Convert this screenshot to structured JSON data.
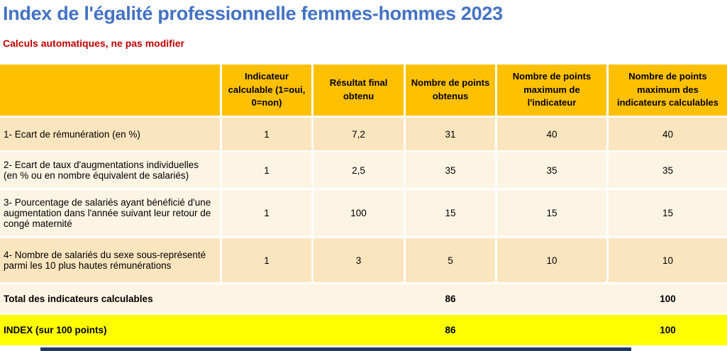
{
  "page": {
    "title": "Index de l'égalité professionnelle femmes-hommes 2023",
    "subtitle": "Calculs automatiques, ne pas modifier"
  },
  "colors": {
    "title_blue": "#4472C4",
    "subtitle_red": "#C00000",
    "header_gold": "#FFC000",
    "row_dark_cream": "#FBE5BE",
    "row_light_cream": "#FDF4E3",
    "index_yellow": "#FFFF00",
    "footer_navy": "#1F3864"
  },
  "table": {
    "columns": [
      "",
      "Indicateur calculable (1=oui, 0=non)",
      "Résultat final obtenu",
      "Nombre de points obtenus",
      "Nombre de points maximum de l'indicateur",
      "Nombre de points maximum des indicateurs calculables"
    ],
    "rows": [
      {
        "label": "1- Ecart de rémunération (en %)",
        "calculable": "1",
        "resultat": "7,2",
        "points_obtenus": "31",
        "points_max_indicateur": "40",
        "points_max_calculables": "40"
      },
      {
        "label": "2- Ecart de taux d'augmentations individuelles (en % ou en nombre équivalent de salariés)",
        "calculable": "1",
        "resultat": "2,5",
        "points_obtenus": "35",
        "points_max_indicateur": "35",
        "points_max_calculables": "35"
      },
      {
        "label": "3- Pourcentage de salariés ayant bénéficié d'une augmentation dans l'année suivant leur retour de congé maternité",
        "calculable": "1",
        "resultat": "100",
        "points_obtenus": "15",
        "points_max_indicateur": "15",
        "points_max_calculables": "15"
      },
      {
        "label": "4- Nombre de salariés du sexe sous-représenté parmi les 10 plus hautes rémunérations",
        "calculable": "1",
        "resultat": "3",
        "points_obtenus": "5",
        "points_max_indicateur": "10",
        "points_max_calculables": "10"
      }
    ],
    "total_row": {
      "label": "Total des indicateurs calculables",
      "points_obtenus": "86",
      "points_max_calculables": "100"
    },
    "index_row": {
      "label": "INDEX (sur 100 points)",
      "points_obtenus": "86",
      "points_max_calculables": "100"
    }
  }
}
